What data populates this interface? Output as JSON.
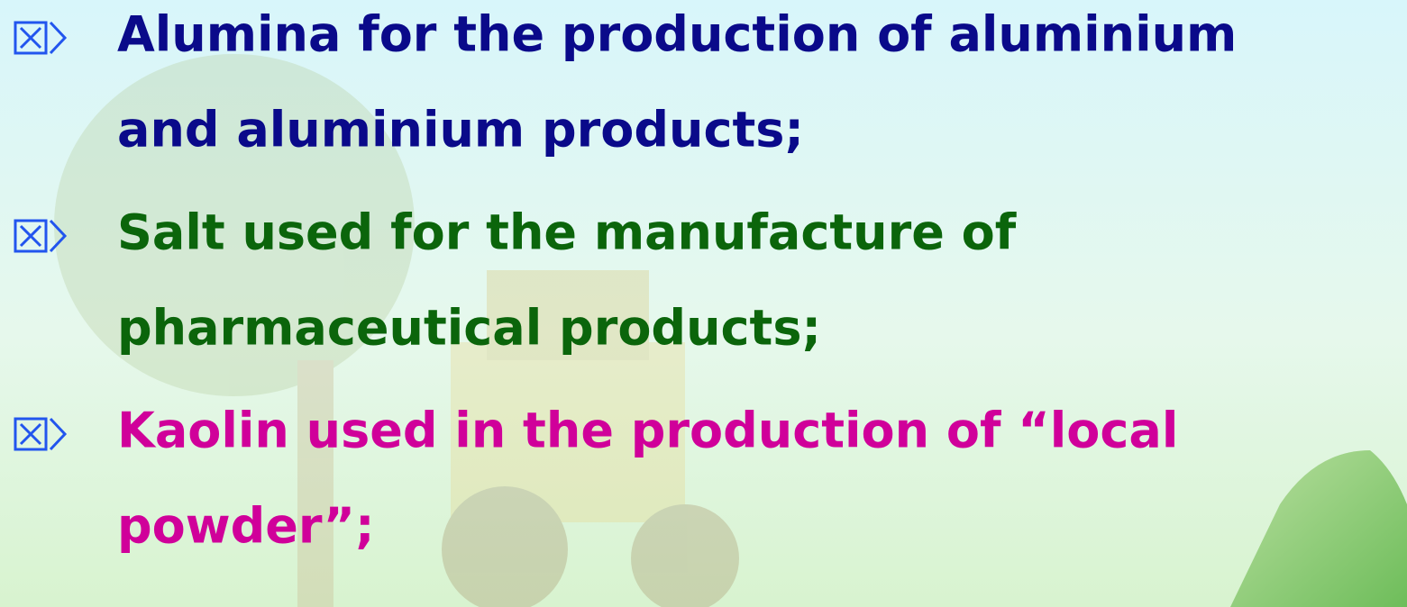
{
  "items": [
    {
      "lines": [
        "Alumina for the production of aluminium",
        "and aluminium products;"
      ],
      "color": "#0a0a8a"
    },
    {
      "lines": [
        "Salt used for the manufacture of",
        "pharmaceutical products;"
      ],
      "color": "#0b650b"
    },
    {
      "lines": [
        "Kaolin used in the production of “local",
        "powder”;"
      ],
      "color": "#d0009a"
    }
  ]
}
